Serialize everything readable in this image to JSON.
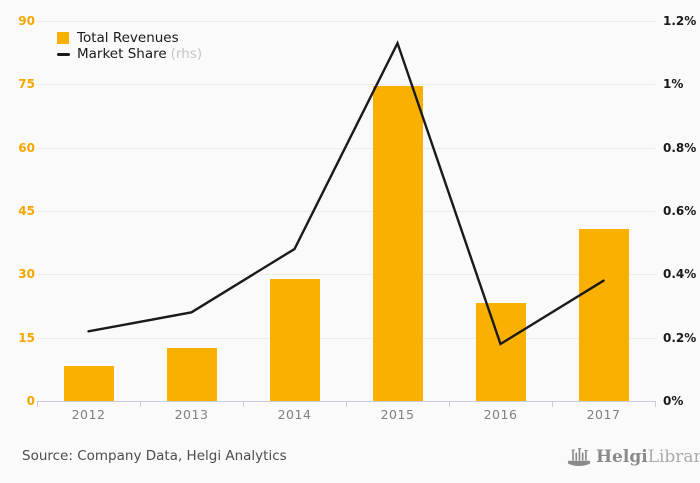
{
  "chart_data": {
    "type": "bar+line combo",
    "categories": [
      "2012",
      "2013",
      "2014",
      "2015",
      "2016",
      "2017"
    ],
    "series": [
      {
        "name": "Total Revenues",
        "type": "bar",
        "axis": "left",
        "color": "#F9B000",
        "values": [
          8.4,
          12.5,
          29.0,
          74.6,
          23.2,
          40.7
        ]
      },
      {
        "name": "Market Share (rhs)",
        "type": "line",
        "axis": "right",
        "color": "#1A1A1A",
        "values": [
          0.22,
          0.28,
          0.48,
          1.13,
          0.18,
          0.38
        ]
      }
    ],
    "left_axis": {
      "min": 0,
      "max": 90,
      "ticks_top_down": [
        "90",
        "75",
        "60",
        "45",
        "30",
        "15",
        "0"
      ],
      "label_color": "#F5A700"
    },
    "right_axis": {
      "min": 0,
      "max": 1.2,
      "ticks_top_down": [
        "1.2%",
        "1%",
        "0.8%",
        "0.6%",
        "0.4%",
        "0.2%",
        "0%"
      ]
    },
    "grid": true,
    "legend_position": "top-left",
    "title": ""
  },
  "legend": {
    "items": [
      {
        "label": "Total Revenues",
        "swatch": "bar-square"
      },
      {
        "label": "Market Share",
        "suffix": "(rhs)",
        "swatch": "line-dash"
      }
    ]
  },
  "footer": {
    "source": "Source: Company Data, Helgi Analytics",
    "logo": {
      "bold": "Helgi",
      "light": "Library.",
      "icon": "helgi-boat-icon"
    }
  },
  "colors": {
    "background": "#FAFAFA",
    "bar": "#F9B000",
    "line": "#1A1A1A",
    "left_axis_labels": "#F5A700",
    "right_axis_labels": "#1A1A1A",
    "gridline": "#EBEBEB",
    "axis_line": "#C7CCDF",
    "x_labels": "#808080",
    "source_text": "#4D4D4D",
    "logo_gray": "#8A8A8A"
  }
}
